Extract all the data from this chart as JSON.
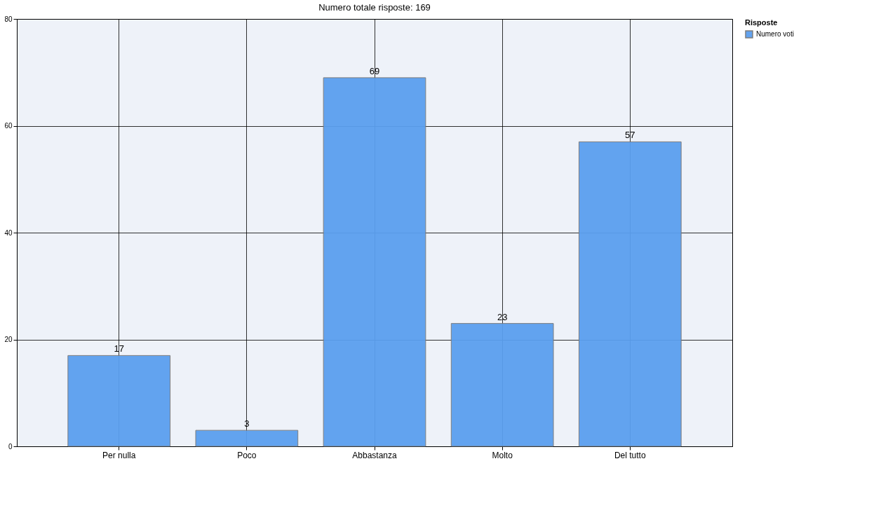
{
  "chart_data": {
    "type": "bar",
    "title": "Numero totale risposte: 169",
    "legend_title": "Risposte",
    "categories": [
      "Per nulla",
      "Poco",
      "Abbastanza",
      "Molto",
      "Del tutto"
    ],
    "series": [
      {
        "name": "Numero voti",
        "color": "#5b9fef",
        "values": [
          17,
          3,
          69,
          23,
          57
        ]
      }
    ],
    "ylim": [
      0,
      80
    ],
    "yticks": [
      0,
      20,
      40,
      60,
      80
    ],
    "grid": true,
    "legend": "top right",
    "data_labels": true
  }
}
